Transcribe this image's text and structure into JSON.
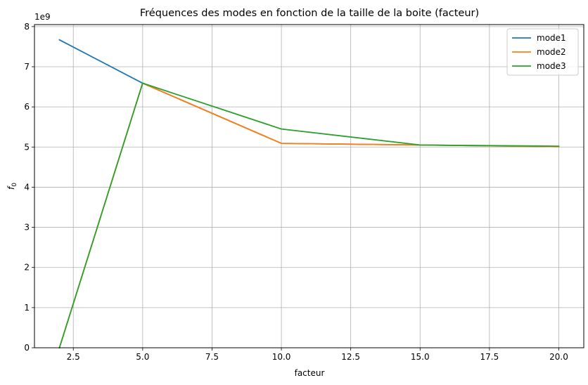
{
  "chart_data": {
    "type": "line",
    "title": "Fréquences des modes en fonction de la taille de la boite (facteur)",
    "xlabel": "facteur",
    "ylabel": "f",
    "ylabel_subscript": "0",
    "y_offset_label": "1e9",
    "xlim": [
      1.1,
      20.9
    ],
    "ylim": [
      0,
      8.05
    ],
    "x_ticks": [
      2.5,
      5.0,
      7.5,
      10.0,
      12.5,
      15.0,
      17.5,
      20.0
    ],
    "x_tick_labels": [
      "2.5",
      "5.0",
      "7.5",
      "10.0",
      "12.5",
      "15.0",
      "17.5",
      "20.0"
    ],
    "y_ticks": [
      0,
      1,
      2,
      3,
      4,
      5,
      6,
      7,
      8
    ],
    "y_tick_labels": [
      "0",
      "1",
      "2",
      "3",
      "4",
      "5",
      "6",
      "7",
      "8"
    ],
    "grid": true,
    "legend_position": "top-right",
    "series": [
      {
        "name": "mode1",
        "color": "#1f77b4",
        "x": [
          2,
          5,
          10,
          15,
          20
        ],
        "y": [
          7.67,
          6.59,
          5.09,
          5.05,
          5.01
        ]
      },
      {
        "name": "mode2",
        "color": "#ff7f0e",
        "x": [
          2,
          5,
          10,
          15,
          20
        ],
        "y": [
          0.0,
          6.59,
          5.09,
          5.05,
          5.01
        ]
      },
      {
        "name": "mode3",
        "color": "#2ca02c",
        "x": [
          2,
          5,
          10,
          15,
          20
        ],
        "y": [
          0.0,
          6.59,
          5.45,
          5.05,
          5.02
        ]
      }
    ]
  }
}
